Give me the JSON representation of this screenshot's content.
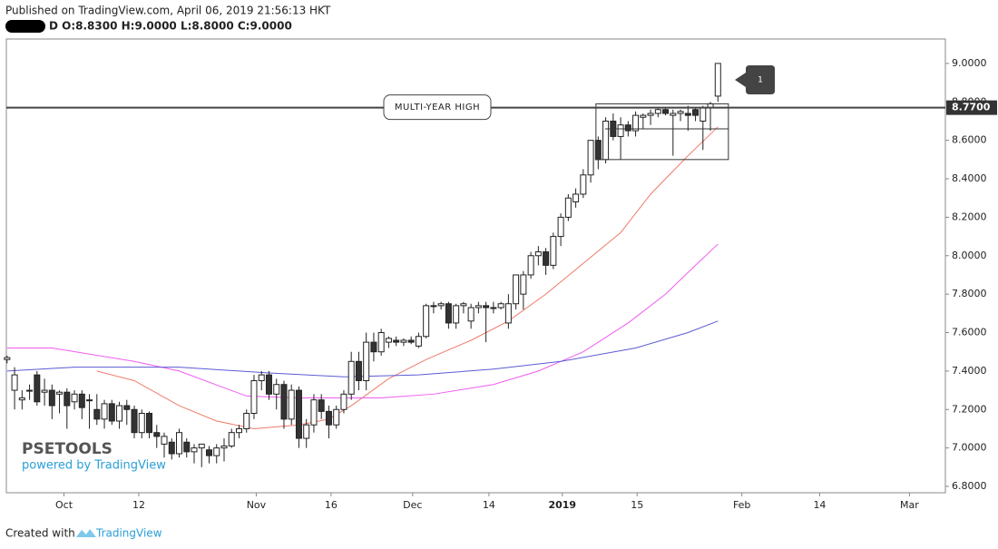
{
  "header": {
    "published": "Published on TradingView.com, April 06, 2019 21:56:13 HKT",
    "ohlc": "D  O:8.8300 H:9.0000 L:8.8000 C:9.0000"
  },
  "watermark": {
    "brand": "PSETOOLS",
    "powered": "powered by TradingView"
  },
  "footer": {
    "created": "Created with",
    "brand": "TradingView"
  },
  "chart_data": {
    "type": "candlestick",
    "open": [
      7.46,
      7.3,
      7.25,
      7.3,
      7.38,
      7.29,
      7.3,
      7.28,
      7.29,
      7.24,
      7.28,
      7.25,
      7.2,
      7.15,
      7.23,
      7.14,
      7.22,
      7.2,
      7.08,
      7.18,
      7.08,
      7.02,
      7.03,
      6.97,
      7.03,
      6.98,
      7.0,
      6.99,
      6.96,
      7.0,
      7.01,
      7.08,
      7.1,
      7.18,
      7.35,
      7.38,
      7.28,
      7.33,
      7.15,
      7.3,
      7.05,
      7.12,
      7.25,
      7.19,
      7.12,
      7.2,
      7.28,
      7.45,
      7.35,
      7.55,
      7.5,
      7.55,
      7.56,
      7.55,
      7.56,
      7.53,
      7.58,
      7.74,
      7.74,
      7.75,
      7.65,
      7.74,
      7.66,
      7.73,
      7.74,
      7.73,
      7.73,
      7.65,
      7.75,
      7.8,
      7.9,
      8.0,
      8.02,
      7.95,
      8.1,
      8.2,
      8.28,
      8.32,
      8.42,
      8.6,
      8.5,
      8.7,
      8.62,
      8.68,
      8.65,
      8.72,
      8.73,
      8.74,
      8.76,
      8.73,
      8.74,
      8.74,
      8.76,
      8.7,
      8.77,
      8.83
    ],
    "high": [
      7.48,
      7.42,
      7.3,
      7.33,
      7.4,
      7.36,
      7.33,
      7.3,
      7.31,
      7.3,
      7.3,
      7.28,
      7.28,
      7.25,
      7.25,
      7.24,
      7.25,
      7.22,
      7.2,
      7.19,
      7.12,
      7.08,
      7.05,
      7.1,
      7.05,
      7.02,
      7.02,
      7.01,
      7.02,
      7.05,
      7.1,
      7.12,
      7.2,
      7.38,
      7.4,
      7.4,
      7.36,
      7.35,
      7.33,
      7.32,
      7.15,
      7.28,
      7.28,
      7.22,
      7.22,
      7.3,
      7.5,
      7.5,
      7.6,
      7.6,
      7.62,
      7.58,
      7.58,
      7.57,
      7.58,
      7.6,
      7.75,
      7.76,
      7.76,
      7.76,
      7.75,
      7.76,
      7.75,
      7.76,
      7.76,
      7.76,
      7.76,
      7.8,
      7.9,
      7.92,
      8.02,
      8.05,
      8.04,
      8.12,
      8.22,
      8.32,
      8.35,
      8.45,
      8.6,
      8.62,
      8.72,
      8.74,
      8.72,
      8.7,
      8.75,
      8.74,
      8.76,
      8.77,
      8.77,
      8.76,
      8.76,
      8.78,
      8.77,
      8.78,
      8.8,
      9.0
    ],
    "low": [
      7.44,
      7.2,
      7.2,
      7.25,
      7.22,
      7.22,
      7.15,
      7.18,
      7.1,
      7.2,
      7.15,
      7.1,
      7.12,
      7.1,
      7.12,
      7.1,
      7.12,
      7.05,
      7.05,
      7.05,
      7.0,
      6.95,
      6.94,
      6.95,
      6.95,
      6.92,
      6.9,
      6.92,
      6.92,
      6.93,
      7.0,
      7.05,
      7.08,
      7.15,
      7.3,
      7.25,
      7.2,
      7.1,
      7.12,
      7.0,
      7.0,
      7.08,
      7.15,
      7.05,
      7.1,
      7.18,
      7.25,
      7.3,
      7.3,
      7.45,
      7.48,
      7.52,
      7.53,
      7.53,
      7.54,
      7.52,
      7.57,
      7.7,
      7.72,
      7.62,
      7.62,
      7.7,
      7.62,
      7.7,
      7.55,
      7.7,
      7.72,
      7.62,
      7.72,
      7.72,
      7.88,
      7.95,
      7.9,
      7.93,
      8.05,
      8.18,
      8.25,
      8.3,
      8.38,
      8.45,
      8.48,
      8.6,
      8.5,
      8.62,
      8.62,
      8.66,
      8.68,
      8.72,
      8.73,
      8.52,
      8.7,
      8.65,
      8.7,
      8.55,
      8.65,
      8.8
    ],
    "close": [
      7.47,
      7.38,
      7.26,
      7.3,
      7.24,
      7.3,
      7.22,
      7.29,
      7.22,
      7.28,
      7.21,
      7.25,
      7.15,
      7.23,
      7.14,
      7.22,
      7.2,
      7.08,
      7.18,
      7.08,
      7.06,
      7.06,
      6.97,
      7.08,
      6.98,
      7.0,
      7.02,
      6.96,
      7.0,
      7.01,
      7.08,
      7.1,
      7.18,
      7.35,
      7.38,
      7.28,
      7.33,
      7.15,
      7.3,
      7.05,
      7.12,
      7.25,
      7.19,
      7.12,
      7.2,
      7.28,
      7.45,
      7.35,
      7.55,
      7.5,
      7.6,
      7.57,
      7.55,
      7.56,
      7.55,
      7.58,
      7.74,
      7.74,
      7.75,
      7.65,
      7.74,
      7.75,
      7.73,
      7.74,
      7.73,
      7.73,
      7.75,
      7.75,
      7.9,
      7.9,
      8.0,
      8.02,
      7.95,
      8.1,
      8.2,
      8.3,
      8.32,
      8.42,
      8.6,
      8.5,
      8.7,
      8.62,
      8.68,
      8.65,
      8.73,
      8.73,
      8.74,
      8.76,
      8.74,
      8.74,
      8.75,
      8.73,
      8.73,
      8.77,
      8.79,
      9.0
    ],
    "series": [
      {
        "color": "#f07a6a",
        "x": [
          12,
          17,
          23,
          28,
          33,
          39,
          43,
          46,
          51,
          56,
          62,
          67,
          72,
          77,
          82,
          86,
          91,
          95
        ],
        "values": [
          7.4,
          7.35,
          7.22,
          7.14,
          7.1,
          7.12,
          7.15,
          7.22,
          7.36,
          7.46,
          7.56,
          7.66,
          7.8,
          7.96,
          8.12,
          8.32,
          8.52,
          8.67
        ]
      },
      {
        "color": "#f05cf0",
        "x": [
          0,
          6,
          17,
          23,
          32,
          39,
          50,
          57,
          65,
          71,
          77,
          83,
          88,
          92,
          95
        ],
        "values": [
          7.52,
          7.52,
          7.45,
          7.4,
          7.27,
          7.26,
          7.26,
          7.28,
          7.33,
          7.4,
          7.5,
          7.65,
          7.8,
          7.95,
          8.06
        ]
      },
      {
        "color": "#5b5bd6",
        "x": [
          0,
          9,
          23,
          35,
          45,
          55,
          65,
          74,
          84,
          91,
          95
        ],
        "values": [
          7.4,
          7.42,
          7.42,
          7.39,
          7.37,
          7.38,
          7.41,
          7.45,
          7.52,
          7.6,
          7.66
        ]
      }
    ],
    "hline": {
      "value": 8.77,
      "label": "8.7700",
      "text": "MULTI-YEAR HIGH"
    },
    "box": {
      "x": [
        78.7,
        96.4
      ],
      "y": [
        8.5,
        8.79
      ],
      "mid": 8.66
    },
    "callout": "1",
    "xlim": [
      -0.1,
      125.4
    ],
    "xticks": [
      {
        "value": 7.6,
        "label": "Oct"
      },
      {
        "value": 17.6,
        "label": "12"
      },
      {
        "value": 33.3,
        "label": "Nov"
      },
      {
        "value": 43.3,
        "label": "16"
      },
      {
        "value": 54.2,
        "label": "Dec"
      },
      {
        "value": 64.4,
        "label": "14"
      },
      {
        "value": 74.2,
        "label": "2019"
      },
      {
        "value": 84.2,
        "label": "15"
      },
      {
        "value": 98.2,
        "label": "Feb"
      },
      {
        "value": 108.6,
        "label": "14"
      },
      {
        "value": 120.6,
        "label": "Mar"
      }
    ],
    "ylim": [
      6.767,
      9.127
    ],
    "yticks": [
      {
        "value": 9.0,
        "label": "9.0000"
      },
      {
        "value": 8.8,
        "label": "8.8000"
      },
      {
        "value": 8.6,
        "label": "8.6000"
      },
      {
        "value": 8.4,
        "label": "8.4000"
      },
      {
        "value": 8.2,
        "label": "8.2000"
      },
      {
        "value": 8.0,
        "label": "8.0000"
      },
      {
        "value": 7.8,
        "label": "7.8000"
      },
      {
        "value": 7.6,
        "label": "7.6000"
      },
      {
        "value": 7.4,
        "label": "7.4000"
      },
      {
        "value": 7.2,
        "label": "7.2000"
      },
      {
        "value": 7.0,
        "label": "7.0000"
      },
      {
        "value": 6.8,
        "label": "6.8000"
      }
    ]
  }
}
